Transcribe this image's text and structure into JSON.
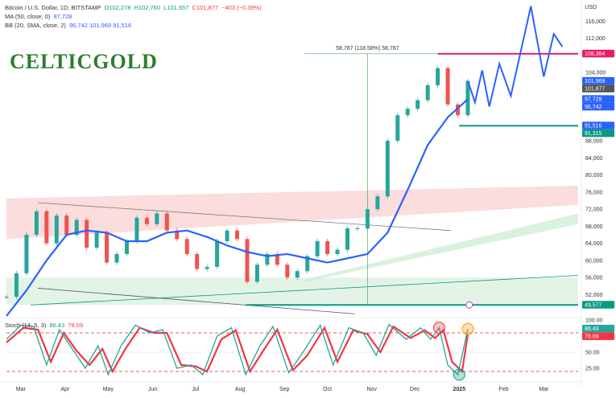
{
  "header": {
    "symbol_line": "Bitcoin / U.S. Dollar, 1D, BITSTAMP",
    "ohlc": {
      "o": "O102,278",
      "h": "H102,760",
      "l": "L101,557",
      "c": "C101,877",
      "chg": "−403 (−0.39%)"
    },
    "ma_line": "MA (50, close, 0)",
    "ma_value": "97,728",
    "bb_line": "BB (20, SMA, close, 2)",
    "bb_values": "96,742  101,969  91,516",
    "stoch_line": "Stoch (14, 5, 3)",
    "stoch_k": "86.43",
    "stoch_d": "78.09"
  },
  "logo_text": "CELTICGOLD",
  "currency_label": "USD",
  "colors": {
    "up": "#26a69a",
    "down": "#ef5350",
    "ma": "#2962ff",
    "forecast": "#2962ff",
    "resistance": "#e91e63",
    "support": "#089981",
    "stoch_k": "#26a69a",
    "stoch_d": "#f23645"
  },
  "chart_data": [
    {
      "type": "line",
      "title": "",
      "xlabel": "",
      "ylabel": "USD",
      "ylim": [
        47000,
        120000
      ],
      "x_ticks": [
        "Mar",
        "Apr",
        "May",
        "Jun",
        "Jul",
        "Aug",
        "Sep",
        "Oct",
        "Nov",
        "Dec",
        "2025",
        "Feb",
        "Mar"
      ],
      "y_ticks": [
        52000,
        56000,
        60000,
        64000,
        68000,
        72000,
        76000,
        80000,
        84000,
        88000,
        96000,
        100000,
        104000,
        112000,
        116000
      ],
      "price_close_weekly": [
        {
          "d": "2024-02-20",
          "v": 51500
        },
        {
          "d": "2024-02-27",
          "v": 57000
        },
        {
          "d": "2024-03-05",
          "v": 66000
        },
        {
          "d": "2024-03-12",
          "v": 71500
        },
        {
          "d": "2024-03-19",
          "v": 64000
        },
        {
          "d": "2024-03-26",
          "v": 70500
        },
        {
          "d": "2024-04-02",
          "v": 66000
        },
        {
          "d": "2024-04-09",
          "v": 69500
        },
        {
          "d": "2024-04-16",
          "v": 63000
        },
        {
          "d": "2024-04-23",
          "v": 66500
        },
        {
          "d": "2024-04-30",
          "v": 59500
        },
        {
          "d": "2024-05-07",
          "v": 61500
        },
        {
          "d": "2024-05-14",
          "v": 64500
        },
        {
          "d": "2024-05-21",
          "v": 70000
        },
        {
          "d": "2024-05-28",
          "v": 68500
        },
        {
          "d": "2024-06-04",
          "v": 71000
        },
        {
          "d": "2024-06-11",
          "v": 67000
        },
        {
          "d": "2024-06-18",
          "v": 65000
        },
        {
          "d": "2024-06-25",
          "v": 61500
        },
        {
          "d": "2024-07-02",
          "v": 58000
        },
        {
          "d": "2024-07-09",
          "v": 58500
        },
        {
          "d": "2024-07-16",
          "v": 64500
        },
        {
          "d": "2024-07-23",
          "v": 67000
        },
        {
          "d": "2024-07-30",
          "v": 65000
        },
        {
          "d": "2024-08-06",
          "v": 55000
        },
        {
          "d": "2024-08-13",
          "v": 59000
        },
        {
          "d": "2024-08-20",
          "v": 61500
        },
        {
          "d": "2024-08-27",
          "v": 59000
        },
        {
          "d": "2024-09-03",
          "v": 56000
        },
        {
          "d": "2024-09-10",
          "v": 57500
        },
        {
          "d": "2024-09-17",
          "v": 61000
        },
        {
          "d": "2024-09-24",
          "v": 64500
        },
        {
          "d": "2024-10-01",
          "v": 61500
        },
        {
          "d": "2024-10-08",
          "v": 62500
        },
        {
          "d": "2024-10-15",
          "v": 67500
        },
        {
          "d": "2024-10-22",
          "v": 67500
        },
        {
          "d": "2024-10-29",
          "v": 72000
        },
        {
          "d": "2024-11-05",
          "v": 75000
        },
        {
          "d": "2024-11-12",
          "v": 88000
        },
        {
          "d": "2024-11-19",
          "v": 94000
        },
        {
          "d": "2024-11-26",
          "v": 95500
        },
        {
          "d": "2024-12-03",
          "v": 97500
        },
        {
          "d": "2024-12-10",
          "v": 101000
        },
        {
          "d": "2024-12-17",
          "v": 105000
        },
        {
          "d": "2024-12-24",
          "v": 96500
        },
        {
          "d": "2024-12-31",
          "v": 94000
        },
        {
          "d": "2025-01-07",
          "v": 102000
        }
      ],
      "ma50": [
        {
          "d": "2024-02-20",
          "v": 47000
        },
        {
          "d": "2024-03-05",
          "v": 53000
        },
        {
          "d": "2024-03-19",
          "v": 60000
        },
        {
          "d": "2024-04-02",
          "v": 66000
        },
        {
          "d": "2024-04-16",
          "v": 67000
        },
        {
          "d": "2024-04-30",
          "v": 66500
        },
        {
          "d": "2024-05-14",
          "v": 64500
        },
        {
          "d": "2024-05-28",
          "v": 64500
        },
        {
          "d": "2024-06-11",
          "v": 66500
        },
        {
          "d": "2024-06-25",
          "v": 67000
        },
        {
          "d": "2024-07-09",
          "v": 65500
        },
        {
          "d": "2024-07-23",
          "v": 63500
        },
        {
          "d": "2024-08-06",
          "v": 62000
        },
        {
          "d": "2024-08-20",
          "v": 61000
        },
        {
          "d": "2024-09-03",
          "v": 61500
        },
        {
          "d": "2024-09-17",
          "v": 60500
        },
        {
          "d": "2024-10-01",
          "v": 59500
        },
        {
          "d": "2024-10-15",
          "v": 60500
        },
        {
          "d": "2024-10-29",
          "v": 61500
        },
        {
          "d": "2024-11-12",
          "v": 66500
        },
        {
          "d": "2024-11-26",
          "v": 76500
        },
        {
          "d": "2024-12-10",
          "v": 87000
        },
        {
          "d": "2024-12-24",
          "v": 93500
        },
        {
          "d": "2025-01-07",
          "v": 97728
        }
      ],
      "forecast_path": [
        {
          "d": "2025-01-07",
          "v": 102000
        },
        {
          "d": "2025-01-12",
          "v": 97000
        },
        {
          "d": "2025-01-17",
          "v": 104500
        },
        {
          "d": "2025-01-22",
          "v": 96000
        },
        {
          "d": "2025-01-29",
          "v": 106000
        },
        {
          "d": "2025-02-06",
          "v": 98500
        },
        {
          "d": "2025-02-20",
          "v": 119500
        },
        {
          "d": "2025-03-01",
          "v": 103000
        },
        {
          "d": "2025-03-08",
          "v": 113000
        },
        {
          "d": "2025-03-14",
          "v": 110000
        }
      ],
      "horizontal_levels": [
        {
          "label": "108,364",
          "v": 108364,
          "color": "#e91e63",
          "from": "2024-12-17"
        },
        {
          "label": "91,516",
          "v": 91516,
          "color": "#089981",
          "from": "2025-01-01"
        },
        {
          "label": "49,577",
          "v": 49577,
          "color": "#089981",
          "from": "2024-08-05"
        }
      ],
      "measure_annotation": {
        "text": "58,787 (118.58%) 58,787",
        "from": 49577,
        "to": 108364
      },
      "right_axis_tags": [
        {
          "label": "108,364",
          "v": 108364,
          "color": "#e91e63"
        },
        {
          "label": "101,969",
          "v": 101969,
          "color": "#2962ff"
        },
        {
          "label": "101,877",
          "v": 101877,
          "color": "#555555"
        },
        {
          "label": "97,728",
          "v": 97728,
          "color": "#2962ff"
        },
        {
          "label": "96,742",
          "v": 96742,
          "color": "#2962ff"
        },
        {
          "label": "91,516",
          "v": 91516,
          "color": "#2962ff"
        },
        {
          "label": "91,315",
          "v": 91315,
          "color": "#089981"
        },
        {
          "label": "49,577",
          "v": 49577,
          "color": "#089981"
        }
      ]
    },
    {
      "type": "line",
      "title": "Stoch (14, 5, 3)",
      "ylim": [
        10,
        100
      ],
      "y_ticks": [
        100,
        75,
        50,
        25
      ],
      "overbought": 80,
      "oversold": 20,
      "k_value": 86.43,
      "d_value": 78.09,
      "k": [
        {
          "d": "2024-02-20",
          "v": 70
        },
        {
          "d": "2024-03-01",
          "v": 92
        },
        {
          "d": "2024-03-10",
          "v": 90
        },
        {
          "d": "2024-03-19",
          "v": 30
        },
        {
          "d": "2024-03-28",
          "v": 85
        },
        {
          "d": "2024-04-06",
          "v": 55
        },
        {
          "d": "2024-04-15",
          "v": 25
        },
        {
          "d": "2024-04-24",
          "v": 60
        },
        {
          "d": "2024-05-01",
          "v": 15
        },
        {
          "d": "2024-05-10",
          "v": 60
        },
        {
          "d": "2024-05-20",
          "v": 92
        },
        {
          "d": "2024-05-30",
          "v": 80
        },
        {
          "d": "2024-06-08",
          "v": 85
        },
        {
          "d": "2024-06-18",
          "v": 25
        },
        {
          "d": "2024-06-28",
          "v": 30
        },
        {
          "d": "2024-07-06",
          "v": 15
        },
        {
          "d": "2024-07-16",
          "v": 75
        },
        {
          "d": "2024-07-26",
          "v": 88
        },
        {
          "d": "2024-08-05",
          "v": 15
        },
        {
          "d": "2024-08-15",
          "v": 60
        },
        {
          "d": "2024-08-24",
          "v": 90
        },
        {
          "d": "2024-09-04",
          "v": 18
        },
        {
          "d": "2024-09-14",
          "v": 50
        },
        {
          "d": "2024-09-26",
          "v": 92
        },
        {
          "d": "2024-10-05",
          "v": 30
        },
        {
          "d": "2024-10-16",
          "v": 88
        },
        {
          "d": "2024-10-26",
          "v": 80
        },
        {
          "d": "2024-11-04",
          "v": 45
        },
        {
          "d": "2024-11-13",
          "v": 93
        },
        {
          "d": "2024-11-25",
          "v": 70
        },
        {
          "d": "2024-12-05",
          "v": 88
        },
        {
          "d": "2024-12-12",
          "v": 70
        },
        {
          "d": "2024-12-18",
          "v": 88
        },
        {
          "d": "2024-12-24",
          "v": 30
        },
        {
          "d": "2024-12-31",
          "v": 15
        },
        {
          "d": "2025-01-07",
          "v": 86
        }
      ],
      "d_series": [
        {
          "d": "2024-02-20",
          "v": 65
        },
        {
          "d": "2024-03-03",
          "v": 88
        },
        {
          "d": "2024-03-13",
          "v": 85
        },
        {
          "d": "2024-03-22",
          "v": 35
        },
        {
          "d": "2024-03-31",
          "v": 80
        },
        {
          "d": "2024-04-09",
          "v": 52
        },
        {
          "d": "2024-04-18",
          "v": 30
        },
        {
          "d": "2024-04-27",
          "v": 55
        },
        {
          "d": "2024-05-04",
          "v": 20
        },
        {
          "d": "2024-05-13",
          "v": 55
        },
        {
          "d": "2024-05-23",
          "v": 88
        },
        {
          "d": "2024-06-02",
          "v": 80
        },
        {
          "d": "2024-06-11",
          "v": 80
        },
        {
          "d": "2024-06-21",
          "v": 30
        },
        {
          "d": "2024-07-01",
          "v": 28
        },
        {
          "d": "2024-07-09",
          "v": 20
        },
        {
          "d": "2024-07-19",
          "v": 70
        },
        {
          "d": "2024-07-29",
          "v": 84
        },
        {
          "d": "2024-08-08",
          "v": 20
        },
        {
          "d": "2024-08-18",
          "v": 55
        },
        {
          "d": "2024-08-27",
          "v": 85
        },
        {
          "d": "2024-09-07",
          "v": 22
        },
        {
          "d": "2024-09-17",
          "v": 45
        },
        {
          "d": "2024-09-29",
          "v": 88
        },
        {
          "d": "2024-10-08",
          "v": 35
        },
        {
          "d": "2024-10-19",
          "v": 84
        },
        {
          "d": "2024-10-29",
          "v": 78
        },
        {
          "d": "2024-11-07",
          "v": 50
        },
        {
          "d": "2024-11-16",
          "v": 90
        },
        {
          "d": "2024-11-28",
          "v": 72
        },
        {
          "d": "2024-12-08",
          "v": 84
        },
        {
          "d": "2024-12-15",
          "v": 72
        },
        {
          "d": "2024-12-21",
          "v": 84
        },
        {
          "d": "2024-12-27",
          "v": 35
        },
        {
          "d": "2025-01-03",
          "v": 20
        },
        {
          "d": "2025-01-07",
          "v": 78
        }
      ],
      "markers": [
        {
          "d": "2024-12-18",
          "v": 88,
          "color": "#f23645"
        },
        {
          "d": "2025-01-07",
          "v": 86,
          "color": "#ff9800"
        },
        {
          "d": "2025-01-01",
          "v": 15,
          "color": "#089981"
        }
      ]
    }
  ]
}
